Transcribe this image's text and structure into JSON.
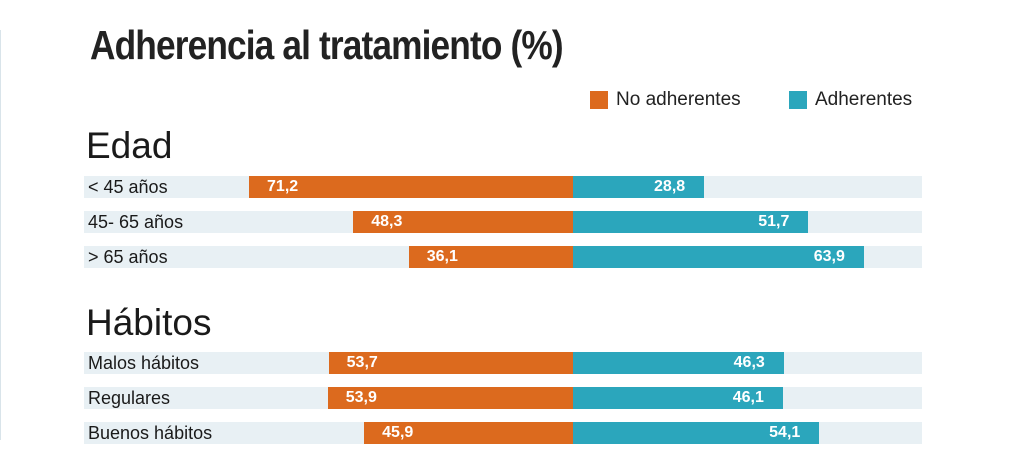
{
  "title": "Adherencia al tratamiento (%)",
  "colors": {
    "no_adherentes": "#dc6a1e",
    "adherentes": "#2ba6bc",
    "row_background": "#e8f0f4"
  },
  "legend": [
    {
      "label": "No adherentes",
      "color": "#dc6a1e"
    },
    {
      "label": "Adherentes",
      "color": "#2ba6bc"
    }
  ],
  "chart_data": {
    "type": "bar",
    "orientation": "horizontal-diverging",
    "title": "Adherencia al tratamiento (%)",
    "legend_position": "top-right",
    "series_names": [
      "No adherentes",
      "Adherentes"
    ],
    "groups": [
      {
        "name": "Edad",
        "rows": [
          {
            "label": "< 45 años",
            "no_adherentes": 71.2,
            "adherentes": 28.8,
            "no_label": "71,2",
            "ad_label": "28,8"
          },
          {
            "label": "45- 65 años",
            "no_adherentes": 48.3,
            "adherentes": 51.7,
            "no_label": "48,3",
            "ad_label": "51,7"
          },
          {
            "label": "> 65 años",
            "no_adherentes": 36.1,
            "adherentes": 63.9,
            "no_label": "36,1",
            "ad_label": "63,9"
          }
        ]
      },
      {
        "name": "Hábitos",
        "rows": [
          {
            "label": "Malos hábitos",
            "no_adherentes": 53.7,
            "adherentes": 46.3,
            "no_label": "53,7",
            "ad_label": "46,3"
          },
          {
            "label": "Regulares",
            "no_adherentes": 53.9,
            "adherentes": 46.1,
            "no_label": "53,9",
            "ad_label": "46,1"
          },
          {
            "label": "Buenos hábitos",
            "no_adherentes": 45.9,
            "adherentes": 54.1,
            "no_label": "45,9",
            "ad_label": "54,1"
          }
        ]
      }
    ]
  }
}
